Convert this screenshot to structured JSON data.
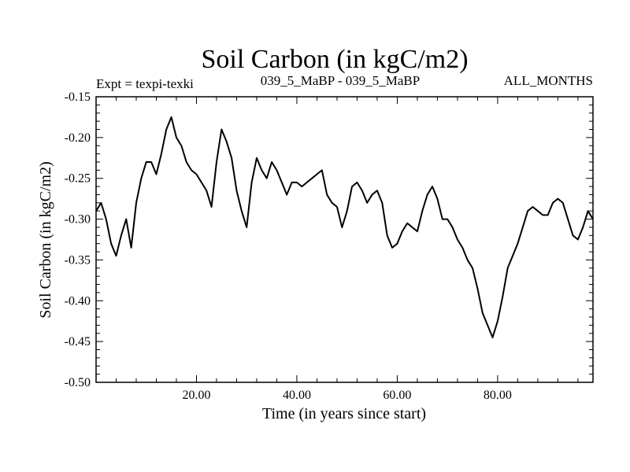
{
  "chart_data": {
    "type": "line",
    "title": "Soil Carbon (in kgC/m2)",
    "subtitle_left": "Expt = texpi-texki",
    "subtitle_center": "039_5_MaBP - 039_5_MaBP",
    "subtitle_right": "ALL_MONTHS",
    "xlabel": "Time (in years since start)",
    "ylabel": "Soil Carbon (in kgC/m2)",
    "xlim": [
      0,
      99
    ],
    "ylim": [
      -0.5,
      -0.15
    ],
    "x_ticks": [
      20,
      40,
      60,
      80
    ],
    "x_tick_labels": [
      "20.00",
      "40.00",
      "60.00",
      "80.00"
    ],
    "y_ticks": [
      -0.15,
      -0.2,
      -0.25,
      -0.3,
      -0.35,
      -0.4,
      -0.45,
      -0.5
    ],
    "y_tick_labels": [
      "-0.15",
      "-0.20",
      "-0.25",
      "-0.30",
      "-0.35",
      "-0.40",
      "-0.45",
      "-0.50"
    ],
    "series": [
      {
        "name": "Soil Carbon",
        "color": "#000000",
        "points": [
          [
            0,
            -0.29
          ],
          [
            1,
            -0.28
          ],
          [
            2,
            -0.3
          ],
          [
            3,
            -0.33
          ],
          [
            4,
            -0.345
          ],
          [
            5,
            -0.32
          ],
          [
            6,
            -0.3
          ],
          [
            7,
            -0.335
          ],
          [
            8,
            -0.28
          ],
          [
            9,
            -0.25
          ],
          [
            10,
            -0.23
          ],
          [
            11,
            -0.23
          ],
          [
            12,
            -0.245
          ],
          [
            13,
            -0.22
          ],
          [
            14,
            -0.19
          ],
          [
            15,
            -0.175
          ],
          [
            16,
            -0.2
          ],
          [
            17,
            -0.21
          ],
          [
            18,
            -0.23
          ],
          [
            19,
            -0.24
          ],
          [
            20,
            -0.245
          ],
          [
            21,
            -0.255
          ],
          [
            22,
            -0.265
          ],
          [
            23,
            -0.285
          ],
          [
            24,
            -0.23
          ],
          [
            25,
            -0.19
          ],
          [
            26,
            -0.205
          ],
          [
            27,
            -0.225
          ],
          [
            28,
            -0.265
          ],
          [
            29,
            -0.29
          ],
          [
            30,
            -0.31
          ],
          [
            31,
            -0.255
          ],
          [
            32,
            -0.225
          ],
          [
            33,
            -0.24
          ],
          [
            34,
            -0.25
          ],
          [
            35,
            -0.23
          ],
          [
            36,
            -0.24
          ],
          [
            37,
            -0.255
          ],
          [
            38,
            -0.27
          ],
          [
            39,
            -0.255
          ],
          [
            40,
            -0.255
          ],
          [
            41,
            -0.26
          ],
          [
            42,
            -0.255
          ],
          [
            43,
            -0.25
          ],
          [
            44,
            -0.245
          ],
          [
            45,
            -0.24
          ],
          [
            46,
            -0.27
          ],
          [
            47,
            -0.28
          ],
          [
            48,
            -0.285
          ],
          [
            49,
            -0.31
          ],
          [
            50,
            -0.29
          ],
          [
            51,
            -0.26
          ],
          [
            52,
            -0.255
          ],
          [
            53,
            -0.265
          ],
          [
            54,
            -0.28
          ],
          [
            55,
            -0.27
          ],
          [
            56,
            -0.265
          ],
          [
            57,
            -0.28
          ],
          [
            58,
            -0.32
          ],
          [
            59,
            -0.335
          ],
          [
            60,
            -0.33
          ],
          [
            61,
            -0.315
          ],
          [
            62,
            -0.305
          ],
          [
            63,
            -0.31
          ],
          [
            64,
            -0.315
          ],
          [
            65,
            -0.29
          ],
          [
            66,
            -0.27
          ],
          [
            67,
            -0.26
          ],
          [
            68,
            -0.275
          ],
          [
            69,
            -0.3
          ],
          [
            70,
            -0.3
          ],
          [
            71,
            -0.31
          ],
          [
            72,
            -0.325
          ],
          [
            73,
            -0.335
          ],
          [
            74,
            -0.35
          ],
          [
            75,
            -0.36
          ],
          [
            76,
            -0.385
          ],
          [
            77,
            -0.415
          ],
          [
            78,
            -0.43
          ],
          [
            79,
            -0.445
          ],
          [
            80,
            -0.425
          ],
          [
            81,
            -0.395
          ],
          [
            82,
            -0.36
          ],
          [
            83,
            -0.345
          ],
          [
            84,
            -0.33
          ],
          [
            85,
            -0.31
          ],
          [
            86,
            -0.29
          ],
          [
            87,
            -0.285
          ],
          [
            88,
            -0.29
          ],
          [
            89,
            -0.295
          ],
          [
            90,
            -0.295
          ],
          [
            91,
            -0.28
          ],
          [
            92,
            -0.275
          ],
          [
            93,
            -0.28
          ],
          [
            94,
            -0.3
          ],
          [
            95,
            -0.32
          ],
          [
            96,
            -0.325
          ],
          [
            97,
            -0.31
          ],
          [
            98,
            -0.29
          ],
          [
            99,
            -0.3
          ]
        ]
      }
    ]
  }
}
